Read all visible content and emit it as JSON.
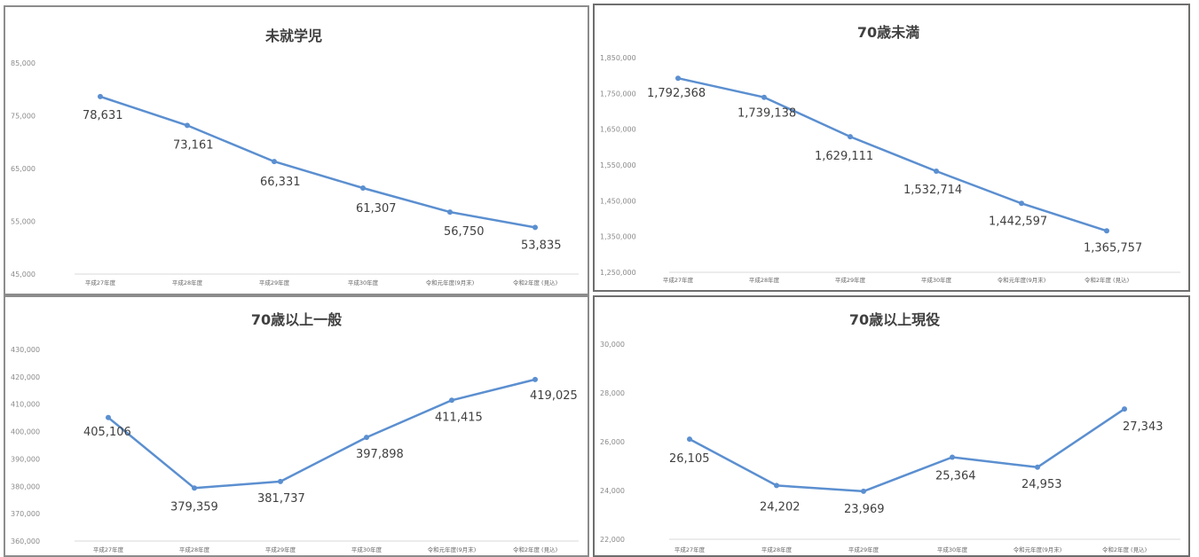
{
  "chart_data": [
    {
      "type": "line",
      "title": "未就学児",
      "categories": [
        "平成27年度",
        "平成28年度",
        "平成29年度",
        "平成30年度",
        "令和元年度(9月末)",
        "令和2年度 (見込)"
      ],
      "yticks": [
        "85,000",
        "75,000",
        "65,000",
        "55,000",
        "45,000"
      ],
      "ylim": [
        45000,
        85000
      ],
      "series": [
        {
          "values": [
            78631,
            73161,
            66331,
            61307,
            56750,
            53835
          ]
        }
      ],
      "data_labels": [
        "78,631",
        "73,161",
        "66,331",
        "61,307",
        "56,750",
        "53,835"
      ],
      "color": "#5b8fd0",
      "grid": false,
      "legend": "none"
    },
    {
      "type": "line",
      "title": "70歳未満",
      "categories": [
        "平成27年度",
        "平成28年度",
        "平成29年度",
        "平成30年度",
        "令和元年度(9月末)",
        "令和2年度 (見込)"
      ],
      "yticks": [
        "1,850,000",
        "1,750,000",
        "1,650,000",
        "1,550,000",
        "1,450,000",
        "1,350,000",
        "1,250,000"
      ],
      "ylim": [
        1250000,
        1850000
      ],
      "series": [
        {
          "values": [
            1792368,
            1739138,
            1629111,
            1532714,
            1442597,
            1365757
          ]
        }
      ],
      "data_labels": [
        "1,792,368",
        "1,739,138",
        "1,629,111",
        "1,532,714",
        "1,442,597",
        "1,365,757"
      ],
      "color": "#5b8fd0",
      "grid": false,
      "legend": "none"
    },
    {
      "type": "line",
      "title": "70歳以上一般",
      "categories": [
        "平成27年度",
        "平成28年度",
        "平成29年度",
        "平成30年度",
        "令和元年度(9月末)",
        "令和2年度 (見込)"
      ],
      "yticks": [
        "430,000",
        "420,000",
        "410,000",
        "400,000",
        "390,000",
        "380,000",
        "370,000",
        "360,000"
      ],
      "ylim": [
        360000,
        430000
      ],
      "series": [
        {
          "values": [
            405106,
            379359,
            381737,
            397898,
            411415,
            419025
          ]
        }
      ],
      "data_labels": [
        "405,106",
        "379,359",
        "381,737",
        "397,898",
        "411,415",
        "419,025"
      ],
      "color": "#5b8fd0",
      "grid": false,
      "legend": "none"
    },
    {
      "type": "line",
      "title": "70歳以上現役",
      "categories": [
        "平成27年度",
        "平成28年度",
        "平成29年度",
        "平成30年度",
        "令和元年度(9月末)",
        "令和2年度 (見込)"
      ],
      "yticks": [
        "30,000",
        "28,000",
        "26,000",
        "24,000",
        "22,000"
      ],
      "ylim": [
        22000,
        30000
      ],
      "series": [
        {
          "values": [
            26105,
            24202,
            23969,
            25364,
            24953,
            27343
          ]
        }
      ],
      "data_labels": [
        "26,105",
        "24,202",
        "23,969",
        "25,364",
        "24,953",
        "27,343"
      ],
      "color": "#5b8fd0",
      "grid": false,
      "legend": "none"
    }
  ]
}
